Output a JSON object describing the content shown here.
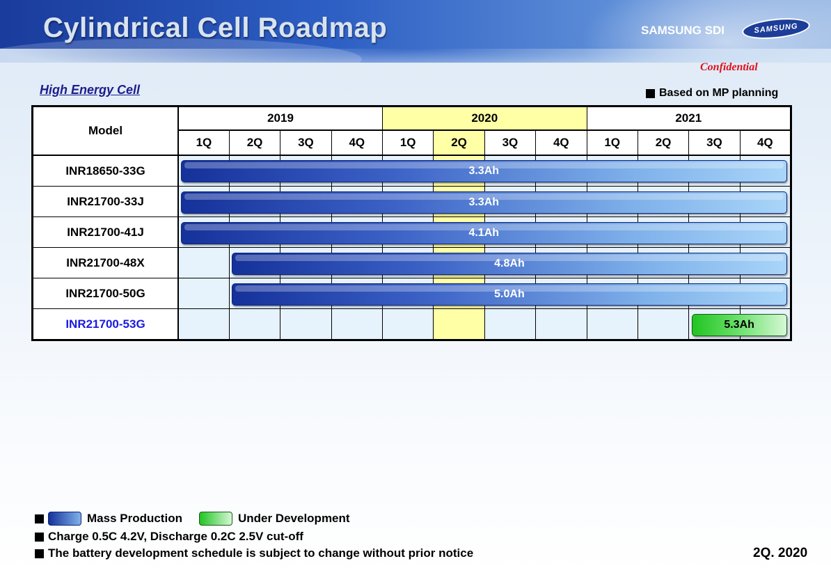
{
  "header": {
    "title": "Cylindrical Cell Roadmap",
    "brand": "SAMSUNG SDI",
    "logo_text": "SAMSUNG",
    "confidential": "Confidential"
  },
  "section_title": "High Energy Cell",
  "basis_note": "Based on MP planning",
  "table": {
    "model_header": "Model",
    "years": [
      "2019",
      "2020",
      "2021"
    ],
    "quarters": [
      "1Q",
      "2Q",
      "3Q",
      "4Q"
    ],
    "highlight_year": "2020",
    "highlight_quarter": "2020 2Q",
    "rows": [
      {
        "model": "INR18650-33G",
        "capacity": "3.3Ah",
        "status": "Mass Production",
        "start": "2019 1Q",
        "end": "2021 4Q"
      },
      {
        "model": "INR21700-33J",
        "capacity": "3.3Ah",
        "status": "Mass Production",
        "start": "2019 1Q",
        "end": "2021 4Q"
      },
      {
        "model": "INR21700-41J",
        "capacity": "4.1Ah",
        "status": "Mass Production",
        "start": "2019 1Q",
        "end": "2021 4Q"
      },
      {
        "model": "INR21700-48X",
        "capacity": "4.8Ah",
        "status": "Mass Production",
        "start": "2019 2Q",
        "end": "2021 4Q"
      },
      {
        "model": "INR21700-50G",
        "capacity": "5.0Ah",
        "status": "Mass Production",
        "start": "2019 2Q",
        "end": "2021 4Q"
      },
      {
        "model": "INR21700-53G",
        "capacity": "5.3Ah",
        "status": "Under Development",
        "start": "2021 3Q",
        "end": "2021 4Q"
      }
    ]
  },
  "legend": {
    "mass_production": "Mass Production",
    "under_development": "Under Development"
  },
  "notes": [
    "Charge 0.5C 4.2V, Discharge 0.2C 2.5V cut-off",
    "The battery development schedule is subject to change without prior notice"
  ],
  "date": "2Q. 2020",
  "colors": {
    "header_blue": "#1a3c9c",
    "highlight_yellow": "#ffffa6",
    "cell_bg": "#e6f2fc",
    "mp_bar_dark": "#15319a",
    "mp_bar_light": "#a9d5f8",
    "dev_bar_green": "#22c422",
    "confidential_red": "#e0101a",
    "dev_model_blue": "#1a1ae0"
  }
}
